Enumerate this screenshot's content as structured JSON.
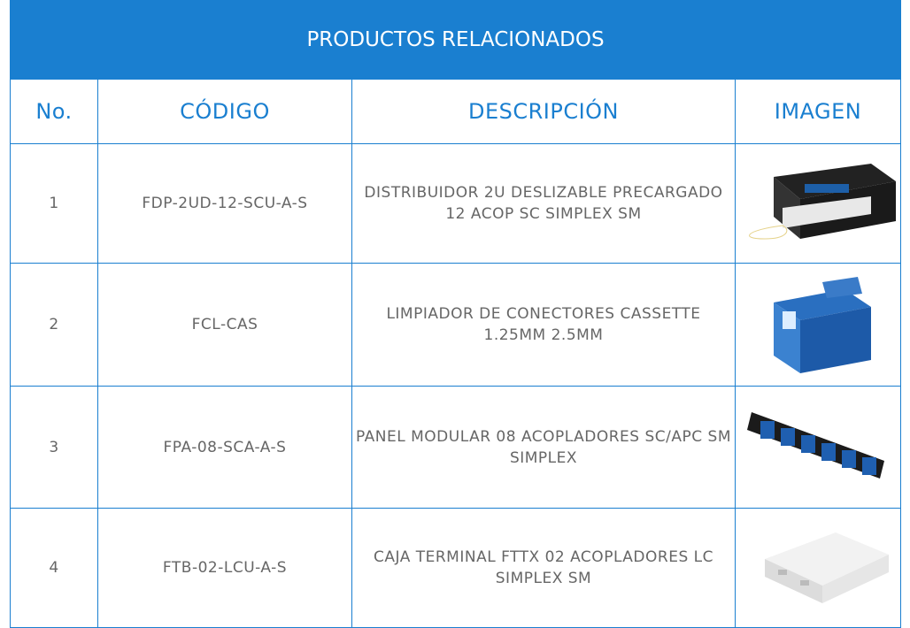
{
  "header": {
    "title": "PRODUCTOS RELACIONADOS"
  },
  "table": {
    "columns": [
      "No.",
      "CÓDIGO",
      "DESCRIPCIÓN",
      "IMAGEN"
    ],
    "rows": [
      [
        "1",
        "FDP-2UD-12-SCU-A-S",
        "DISTRIBUIDOR 2U DESLIZABLE PRECARGADO 12 ACOP SC SIMPLEX SM"
      ],
      [
        "2",
        "FCL-CAS",
        "LIMPIADOR DE CONECTORES CASSETTE 1.25MM 2.5MM"
      ],
      [
        "3",
        "FPA-08-SCA-A-S",
        "PANEL MODULAR 08 ACOPLADORES SC/APC SM SIMPLEX"
      ],
      [
        "4",
        "FTB-02-LCU-A-S",
        "CAJA TERMINAL FTTX 02 ACOPLADORES LC SIMPLEX SM"
      ]
    ]
  }
}
